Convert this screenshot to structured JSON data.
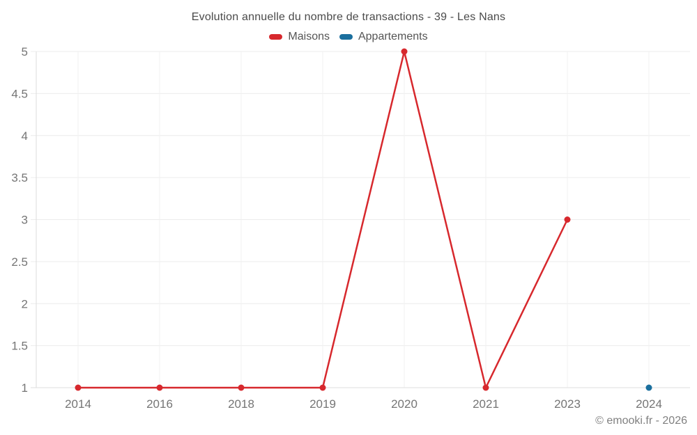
{
  "footer": {
    "copyright": "© emooki.fr - 2026"
  },
  "chart_data": {
    "type": "line",
    "title": "Evolution annuelle du nombre de transactions - 39 - Les Nans",
    "categories": [
      "2014",
      "2016",
      "2018",
      "2019",
      "2020",
      "2021",
      "2023",
      "2024"
    ],
    "series": [
      {
        "name": "Maisons",
        "color": "#d7282d",
        "values": [
          1,
          1,
          1,
          1,
          5,
          1,
          3,
          null
        ]
      },
      {
        "name": "Appartements",
        "color": "#1b6f9e",
        "values": [
          null,
          null,
          null,
          null,
          null,
          null,
          null,
          1
        ]
      }
    ],
    "xlabel": "",
    "ylabel": "",
    "y_ticks": [
      1,
      1.5,
      2,
      2.5,
      3,
      3.5,
      4,
      4.5,
      5
    ],
    "ylim": [
      1,
      5
    ],
    "grid": true,
    "legend_position": "top",
    "background": "#ffffff",
    "grid_color_horizontal": "#ececec",
    "grid_color_vertical": "#f1f1f1",
    "axis_line_color": "#dedede",
    "tick_label_color": "#757575"
  }
}
